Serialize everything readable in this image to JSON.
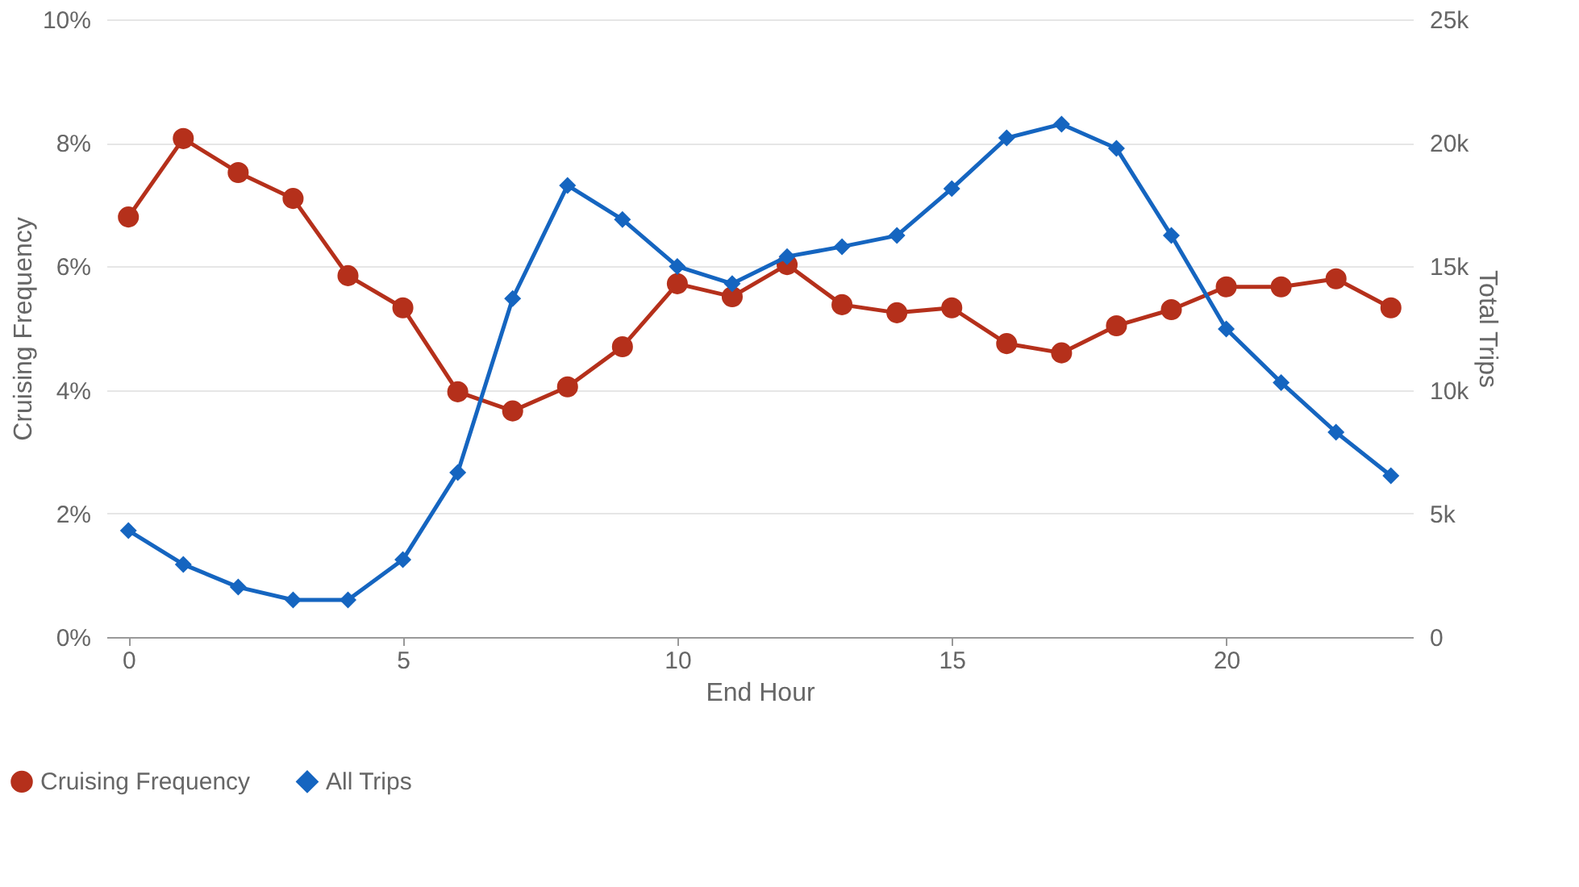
{
  "chart_data": {
    "type": "line",
    "xlabel": "End Hour",
    "ylabel": "Cruising Frequency",
    "y2label": "Total Trips",
    "x": [
      0,
      1,
      2,
      3,
      4,
      5,
      6,
      7,
      8,
      9,
      10,
      11,
      12,
      13,
      14,
      15,
      16,
      17,
      18,
      19,
      20,
      21,
      22,
      23
    ],
    "series": [
      {
        "name": "Cruising Frequency",
        "color": "#b5301b",
        "marker": "circle",
        "values": [
          6.8,
          8.07,
          7.52,
          7.1,
          5.85,
          5.33,
          3.97,
          3.66,
          4.05,
          4.7,
          5.72,
          5.51,
          6.03,
          5.38,
          5.25,
          5.33,
          4.75,
          4.6,
          5.04,
          5.3,
          5.67,
          5.67,
          5.8,
          5.33
        ]
      },
      {
        "name": "All Trips",
        "color": "#1565c0",
        "marker": "diamond",
        "axis": "y2",
        "values": [
          4310,
          2940,
          2020,
          1500,
          1500,
          3130,
          6660,
          13700,
          18280,
          16900,
          15000,
          14300,
          15400,
          15800,
          16250,
          18150,
          20200,
          20760,
          19780,
          16250,
          12470,
          10300,
          8290,
          6530
        ]
      }
    ],
    "xlim": [
      -0.4,
      23.4
    ],
    "xticks": [
      0,
      5,
      10,
      15,
      20
    ],
    "ylim": [
      0,
      10
    ],
    "yticks": [
      {
        "value": 0,
        "label": "0%"
      },
      {
        "value": 2,
        "label": "2%"
      },
      {
        "value": 4,
        "label": "4%"
      },
      {
        "value": 6,
        "label": "6%"
      },
      {
        "value": 8,
        "label": "8%"
      },
      {
        "value": 10,
        "label": "10%"
      }
    ],
    "y2lim": [
      0,
      25000
    ],
    "y2ticks": [
      {
        "value": 0,
        "label": "0"
      },
      {
        "value": 5000,
        "label": "5k"
      },
      {
        "value": 10000,
        "label": "10k"
      },
      {
        "value": 15000,
        "label": "15k"
      },
      {
        "value": 20000,
        "label": "20k"
      },
      {
        "value": 25000,
        "label": "25k"
      }
    ],
    "grid": "y",
    "legend": "bottom left",
    "line_style": "solid"
  }
}
